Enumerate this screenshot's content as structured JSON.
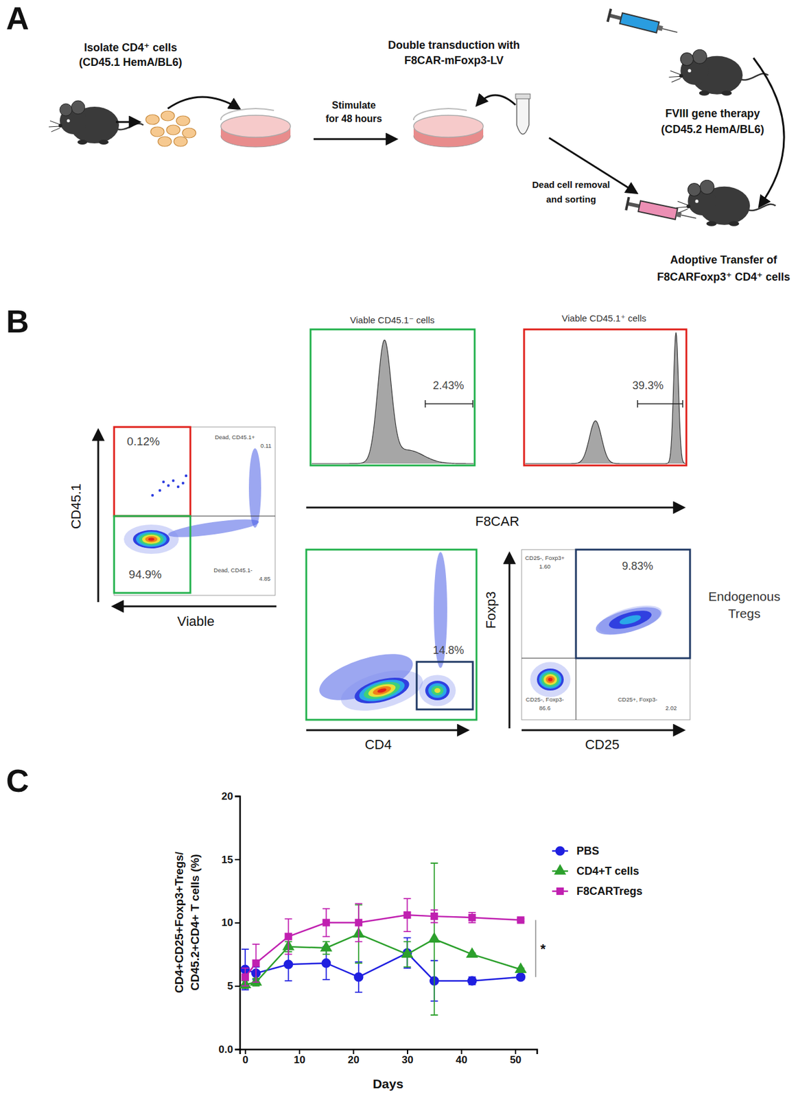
{
  "panels": [
    "A",
    "B",
    "C"
  ],
  "diagram": {
    "isolate": [
      "Isolate CD4⁺ cells",
      "(CD45.1 HemA/BL6)"
    ],
    "stimulate": [
      "Stimulate",
      "for 48 hours"
    ],
    "transduction": [
      "Double transduction with",
      "F8CAR-mFoxp3-LV"
    ],
    "gene_therapy": [
      "FVIII gene therapy",
      "(CD45.2 HemA/BL6)"
    ],
    "sorting": [
      "Dead cell removal",
      "and sorting"
    ],
    "transfer": [
      "Adoptive Transfer of",
      "F8CARFoxp3⁺ CD4⁺ cells"
    ]
  },
  "cytometry": {
    "viability": {
      "x_label": "Viable",
      "y_label": "CD45.1",
      "gates": [
        "0.12%",
        "94.9%"
      ],
      "quadrants": [
        {
          "name": "Dead, CD45.1+",
          "value": "0.11"
        },
        {
          "name": "Dead, CD45.1-",
          "value": "4.85"
        }
      ]
    },
    "histograms": {
      "x_label": "F8CAR",
      "panels": [
        {
          "title": "Viable CD45.1⁻ cells",
          "gate": "2.43%"
        },
        {
          "title": "Viable CD45.1⁺ cells",
          "gate": "39.3%"
        }
      ]
    },
    "cd4": {
      "x_label": "CD4",
      "gate": "14.8%"
    },
    "tregs": {
      "x_label": "CD25",
      "y_label": "Foxp3",
      "gate": "9.83%",
      "quadrants": [
        {
          "name": "CD25-, Foxp3+",
          "value": "1.60"
        },
        {
          "name": "CD25-, Foxp3-",
          "value": "86.6"
        },
        {
          "name": "CD25+, Foxp3-",
          "value": "2.02"
        }
      ],
      "annotation": [
        "Endogenous",
        "Tregs"
      ]
    }
  },
  "chart_data": {
    "type": "line",
    "x_label": "Days",
    "y_label": [
      "CD4+CD25+Foxp3+Tregs/",
      "CD45.2+CD4+ T cells (%)"
    ],
    "x": [
      0,
      2,
      8,
      15,
      21,
      30,
      35,
      42,
      51
    ],
    "xlim": [
      -1,
      54
    ],
    "xticks": [
      0,
      10,
      20,
      30,
      40,
      50
    ],
    "ylim": [
      0,
      20
    ],
    "yticks": [
      {
        "value": 0,
        "label": "0.0"
      },
      5,
      10,
      15,
      20
    ],
    "grid": false,
    "legend": "upper right",
    "series": [
      {
        "name": "PBS",
        "color": "#1f1fe0",
        "marker": "circle",
        "values": [
          6.3,
          6.0,
          6.7,
          6.8,
          5.7,
          7.6,
          5.4,
          5.4,
          5.7
        ],
        "errors": [
          1.6,
          0.5,
          1.3,
          1.3,
          1.2,
          1.2,
          1.6,
          0.3,
          0.2
        ]
      },
      {
        "name": "CD4+T cells",
        "color": "#2ca02c",
        "marker": "triangle",
        "values": [
          5.1,
          5.3,
          8.1,
          8.0,
          9.1,
          7.5,
          8.7,
          7.5,
          6.3
        ],
        "errors": [
          0.3,
          0.3,
          0.4,
          0.5,
          2.3,
          1.0,
          6.0,
          0.1,
          0.1
        ]
      },
      {
        "name": "F8CARTregs",
        "color": "#c020b0",
        "marker": "square",
        "values": [
          5.7,
          6.8,
          8.9,
          10.0,
          10.0,
          10.6,
          10.5,
          10.4,
          10.2
        ],
        "errors": [
          0.7,
          1.5,
          1.4,
          1.1,
          1.5,
          1.3,
          0.5,
          0.4,
          0.1
        ]
      }
    ],
    "annotations": [
      {
        "text": "*"
      }
    ]
  }
}
